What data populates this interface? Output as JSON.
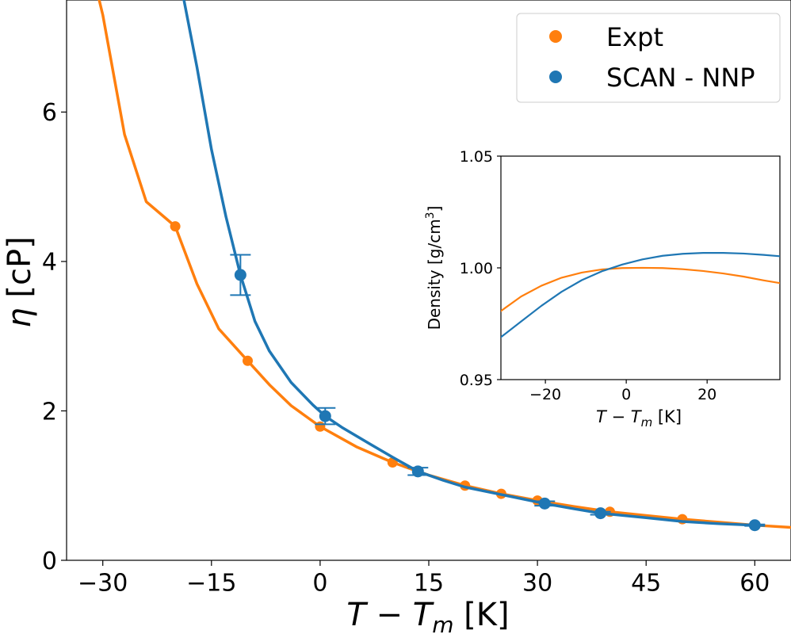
{
  "chart_data": [
    {
      "type": "line",
      "xlabel": "T − T",
      "xlabel_sub": "m",
      "xlabel_unit": " [K]",
      "ylabel": "η",
      "ylabel_unit": " [cP]",
      "xlim": [
        -35,
        65
      ],
      "ylim": [
        0,
        7.5
      ],
      "xticks": [
        -30,
        -15,
        0,
        15,
        30,
        45,
        60
      ],
      "xtick_labels": [
        "−30",
        "−15",
        "0",
        "15",
        "30",
        "45",
        "60"
      ],
      "yticks": [
        0,
        2,
        4,
        6
      ],
      "ytick_labels": [
        "0",
        "2",
        "4",
        "6"
      ],
      "grid": false,
      "legend_position": "top-right",
      "series": [
        {
          "name": "Expt",
          "color": "#ff7f0e",
          "points": [
            {
              "x": -20,
              "y": 4.47
            },
            {
              "x": -10,
              "y": 2.67
            },
            {
              "x": 0,
              "y": 1.79
            },
            {
              "x": 10,
              "y": 1.31
            },
            {
              "x": 20,
              "y": 1.0
            },
            {
              "x": 25,
              "y": 0.89
            },
            {
              "x": 30,
              "y": 0.8
            },
            {
              "x": 40,
              "y": 0.65
            },
            {
              "x": 50,
              "y": 0.55
            },
            {
              "x": 60,
              "y": 0.47
            }
          ],
          "curve": [
            {
              "x": -33,
              "y": 8.5
            },
            {
              "x": -30,
              "y": 7.3
            },
            {
              "x": -27,
              "y": 5.7
            },
            {
              "x": -24,
              "y": 4.8
            },
            {
              "x": -20,
              "y": 4.47
            },
            {
              "x": -17,
              "y": 3.7
            },
            {
              "x": -14,
              "y": 3.1
            },
            {
              "x": -10,
              "y": 2.67
            },
            {
              "x": -7,
              "y": 2.35
            },
            {
              "x": -4,
              "y": 2.07
            },
            {
              "x": 0,
              "y": 1.79
            },
            {
              "x": 5,
              "y": 1.52
            },
            {
              "x": 10,
              "y": 1.31
            },
            {
              "x": 15,
              "y": 1.14
            },
            {
              "x": 20,
              "y": 1.0
            },
            {
              "x": 25,
              "y": 0.89
            },
            {
              "x": 30,
              "y": 0.8
            },
            {
              "x": 35,
              "y": 0.72
            },
            {
              "x": 40,
              "y": 0.65
            },
            {
              "x": 45,
              "y": 0.6
            },
            {
              "x": 50,
              "y": 0.55
            },
            {
              "x": 55,
              "y": 0.51
            },
            {
              "x": 60,
              "y": 0.47
            },
            {
              "x": 65,
              "y": 0.44
            }
          ]
        },
        {
          "name": "SCAN - NNP",
          "color": "#1f77b4",
          "points": [
            {
              "x": -11,
              "y": 3.82,
              "err": 0.27
            },
            {
              "x": 0.7,
              "y": 1.93,
              "err": 0.11
            },
            {
              "x": 13.5,
              "y": 1.19,
              "err": 0.05
            },
            {
              "x": 31,
              "y": 0.76,
              "err": 0.03
            },
            {
              "x": 38.7,
              "y": 0.63,
              "err": 0.02
            },
            {
              "x": 60,
              "y": 0.47,
              "err": 0.01
            }
          ],
          "curve": [
            {
              "x": -19,
              "y": 7.6
            },
            {
              "x": -17,
              "y": 6.6
            },
            {
              "x": -15,
              "y": 5.5
            },
            {
              "x": -13,
              "y": 4.6
            },
            {
              "x": -11,
              "y": 3.82
            },
            {
              "x": -9,
              "y": 3.2
            },
            {
              "x": -7,
              "y": 2.8
            },
            {
              "x": -4,
              "y": 2.38
            },
            {
              "x": -1,
              "y": 2.08
            },
            {
              "x": 0.7,
              "y": 1.93
            },
            {
              "x": 3,
              "y": 1.78
            },
            {
              "x": 7,
              "y": 1.55
            },
            {
              "x": 10,
              "y": 1.38
            },
            {
              "x": 13.5,
              "y": 1.19
            },
            {
              "x": 17,
              "y": 1.07
            },
            {
              "x": 20,
              "y": 0.98
            },
            {
              "x": 25,
              "y": 0.88
            },
            {
              "x": 31,
              "y": 0.76
            },
            {
              "x": 35,
              "y": 0.69
            },
            {
              "x": 38.7,
              "y": 0.63
            },
            {
              "x": 45,
              "y": 0.57
            },
            {
              "x": 50,
              "y": 0.52
            },
            {
              "x": 55,
              "y": 0.49
            },
            {
              "x": 60,
              "y": 0.47
            }
          ]
        }
      ]
    },
    {
      "type": "line",
      "xlabel": "T − T",
      "xlabel_sub": "m",
      "xlabel_unit": " [K]",
      "ylabel": "Density [g/cm",
      "ylabel_sup": "3",
      "ylabel_end": "]",
      "xlim": [
        -31,
        38
      ],
      "ylim": [
        0.95,
        1.05
      ],
      "xticks": [
        -20,
        0,
        20
      ],
      "xtick_labels": [
        "−20",
        "0",
        "20"
      ],
      "yticks": [
        0.95,
        1.0,
        1.05
      ],
      "ytick_labels": [
        "0.95",
        "1.00",
        "1.05"
      ],
      "grid": false,
      "series": [
        {
          "color": "#ff7f0e",
          "curve": [
            {
              "x": -31,
              "y": 0.9807
            },
            {
              "x": -26,
              "y": 0.9872
            },
            {
              "x": -21,
              "y": 0.992
            },
            {
              "x": -16,
              "y": 0.9956
            },
            {
              "x": -11,
              "y": 0.9979
            },
            {
              "x": -6,
              "y": 0.9993
            },
            {
              "x": -1,
              "y": 0.9999
            },
            {
              "x": 4,
              "y": 1.00002
            },
            {
              "x": 9,
              "y": 0.9999
            },
            {
              "x": 14,
              "y": 0.9994
            },
            {
              "x": 19,
              "y": 0.9986
            },
            {
              "x": 24,
              "y": 0.9975
            },
            {
              "x": 29,
              "y": 0.9961
            },
            {
              "x": 34,
              "y": 0.9944
            },
            {
              "x": 38,
              "y": 0.9932
            }
          ]
        },
        {
          "color": "#1f77b4",
          "curve": [
            {
              "x": -31,
              "y": 0.969
            },
            {
              "x": -26,
              "y": 0.976
            },
            {
              "x": -21,
              "y": 0.983
            },
            {
              "x": -16,
              "y": 0.9893
            },
            {
              "x": -11,
              "y": 0.9945
            },
            {
              "x": -6,
              "y": 0.9985
            },
            {
              "x": -1,
              "y": 1.0015
            },
            {
              "x": 4,
              "y": 1.0038
            },
            {
              "x": 9,
              "y": 1.0054
            },
            {
              "x": 14,
              "y": 1.0063
            },
            {
              "x": 19,
              "y": 1.0067
            },
            {
              "x": 24,
              "y": 1.0067
            },
            {
              "x": 29,
              "y": 1.0064
            },
            {
              "x": 34,
              "y": 1.0058
            },
            {
              "x": 38,
              "y": 1.0052
            }
          ]
        }
      ]
    }
  ]
}
